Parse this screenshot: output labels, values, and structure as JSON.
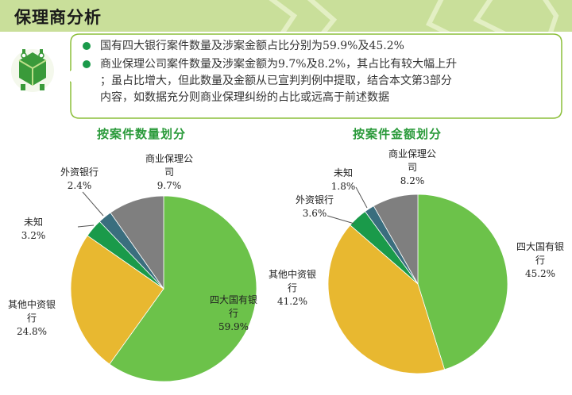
{
  "page": {
    "title": "保理商分析"
  },
  "summary": {
    "bullets": [
      {
        "lines": [
          "国有四大银行案件数量及涉案金额占比分别为59.9%及45.2%"
        ]
      },
      {
        "lines": [
          "商业保理公司案件数量及涉案金额为9.7%及8.2%，其占比有较大幅上升",
          "；虽占比增大，但此数量及金额从已宣判判例中提取，结合本文第3部分",
          "内容，如数据充分则商业保理纠纷的占比或远高于前述数据"
        ]
      }
    ]
  },
  "colors": {
    "header_bg": "#c9df9a",
    "accent_green": "#2a9a3a",
    "bullet_dot": "#1a9a4a",
    "callout_border": "#8cbf3a",
    "big_four": "#6cc24a",
    "other_chinese": "#e8b830",
    "unknown": "#1a9a4a",
    "foreign": "#3a6e7e",
    "commercial_factoring": "#7f7f7f"
  },
  "chart_data": [
    {
      "type": "pie",
      "title": "按案件数量划分",
      "slices": [
        {
          "lines": [
            "四大国有银",
            "行"
          ],
          "value_label": "59.9%",
          "value": 59.9,
          "color": "#6cc24a"
        },
        {
          "lines": [
            "其他中资银",
            "行"
          ],
          "value_label": "24.8%",
          "value": 24.8,
          "color": "#e8b830"
        },
        {
          "lines": [
            "未知"
          ],
          "value_label": "3.2%",
          "value": 3.2,
          "color": "#1a9a4a"
        },
        {
          "lines": [
            "外资银行"
          ],
          "value_label": "2.4%",
          "value": 2.4,
          "color": "#3a6e7e"
        },
        {
          "lines": [
            "商业保理公",
            "司"
          ],
          "value_label": "9.7%",
          "value": 9.7,
          "color": "#7f7f7f"
        }
      ]
    },
    {
      "type": "pie",
      "title": "按案件金额划分",
      "slices": [
        {
          "lines": [
            "四大国有银",
            "行"
          ],
          "value_label": "45.2%",
          "value": 45.2,
          "color": "#6cc24a"
        },
        {
          "lines": [
            "其他中资银",
            "行"
          ],
          "value_label": "41.2%",
          "value": 41.2,
          "color": "#e8b830"
        },
        {
          "lines": [
            "外资银行"
          ],
          "value_label": "3.6%",
          "value": 3.6,
          "color": "#1a9a4a"
        },
        {
          "lines": [
            "未知"
          ],
          "value_label": "1.8%",
          "value": 1.8,
          "color": "#3a6e7e"
        },
        {
          "lines": [
            "商业保理公",
            "司"
          ],
          "value_label": "8.2%",
          "value": 8.2,
          "color": "#7f7f7f"
        }
      ]
    }
  ]
}
